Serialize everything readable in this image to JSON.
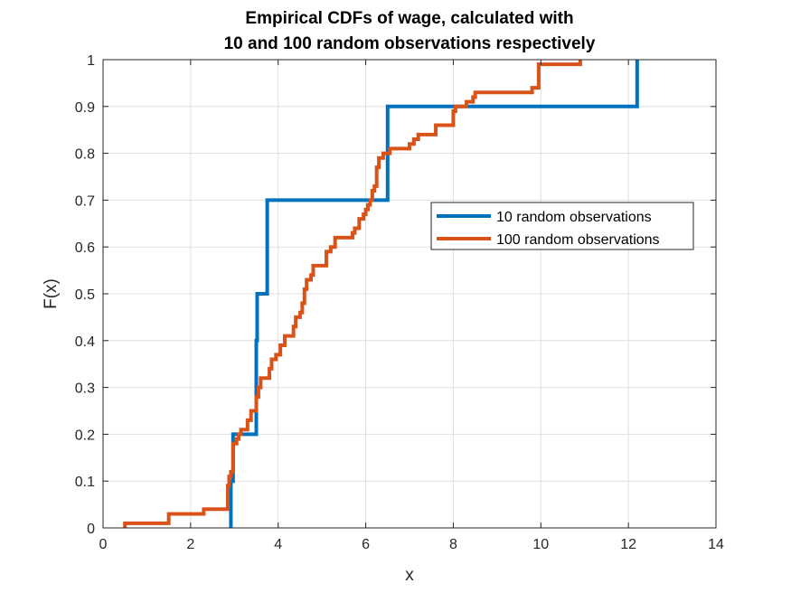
{
  "chart_data": {
    "type": "line",
    "title": "Empirical CDFs of wage, calculated with",
    "subtitle": "10 and 100 random observations respectively",
    "xlabel": "x",
    "ylabel": "F(x)",
    "xlim": [
      0,
      14
    ],
    "ylim": [
      0,
      1
    ],
    "xticks": [
      0,
      2,
      4,
      6,
      8,
      10,
      12,
      14
    ],
    "yticks": [
      0,
      0.1,
      0.2,
      0.3,
      0.4,
      0.5,
      0.6,
      0.7,
      0.8,
      0.9,
      1
    ],
    "xtick_labels": [
      "0",
      "2",
      "4",
      "6",
      "8",
      "10",
      "12",
      "14"
    ],
    "ytick_labels": [
      "0",
      "0.1",
      "0.2",
      "0.3",
      "0.4",
      "0.5",
      "0.6",
      "0.7",
      "0.8",
      "0.9",
      "1"
    ],
    "grid": true,
    "legend_position": "upper-right-inside",
    "series": [
      {
        "name": "10 random observations",
        "color": "#0072BD",
        "step_points": [
          [
            2.92,
            0
          ],
          [
            2.92,
            0.1
          ],
          [
            2.97,
            0.1
          ],
          [
            2.97,
            0.2
          ],
          [
            3.5,
            0.2
          ],
          [
            3.5,
            0.4
          ],
          [
            3.52,
            0.4
          ],
          [
            3.52,
            0.5
          ],
          [
            3.75,
            0.5
          ],
          [
            3.75,
            0.7
          ],
          [
            6.5,
            0.7
          ],
          [
            6.5,
            0.9
          ],
          [
            12.2,
            0.9
          ],
          [
            12.2,
            1
          ]
        ]
      },
      {
        "name": "100 random observations",
        "color": "#D95319",
        "step_points": [
          [
            0.5,
            0
          ],
          [
            0.5,
            0.01
          ],
          [
            1.5,
            0.01
          ],
          [
            1.5,
            0.03
          ],
          [
            2.3,
            0.03
          ],
          [
            2.3,
            0.04
          ],
          [
            2.85,
            0.04
          ],
          [
            2.85,
            0.09
          ],
          [
            2.88,
            0.09
          ],
          [
            2.88,
            0.11
          ],
          [
            2.92,
            0.11
          ],
          [
            2.92,
            0.12
          ],
          [
            2.97,
            0.12
          ],
          [
            2.97,
            0.18
          ],
          [
            3.05,
            0.18
          ],
          [
            3.05,
            0.19
          ],
          [
            3.1,
            0.19
          ],
          [
            3.1,
            0.2
          ],
          [
            3.15,
            0.2
          ],
          [
            3.15,
            0.21
          ],
          [
            3.3,
            0.21
          ],
          [
            3.3,
            0.23
          ],
          [
            3.38,
            0.23
          ],
          [
            3.38,
            0.25
          ],
          [
            3.5,
            0.25
          ],
          [
            3.5,
            0.28
          ],
          [
            3.55,
            0.28
          ],
          [
            3.55,
            0.3
          ],
          [
            3.6,
            0.3
          ],
          [
            3.6,
            0.32
          ],
          [
            3.8,
            0.32
          ],
          [
            3.8,
            0.34
          ],
          [
            3.85,
            0.34
          ],
          [
            3.85,
            0.36
          ],
          [
            3.95,
            0.36
          ],
          [
            3.95,
            0.37
          ],
          [
            4.05,
            0.37
          ],
          [
            4.05,
            0.39
          ],
          [
            4.15,
            0.39
          ],
          [
            4.15,
            0.41
          ],
          [
            4.35,
            0.41
          ],
          [
            4.35,
            0.43
          ],
          [
            4.4,
            0.43
          ],
          [
            4.4,
            0.45
          ],
          [
            4.5,
            0.45
          ],
          [
            4.5,
            0.46
          ],
          [
            4.55,
            0.46
          ],
          [
            4.55,
            0.48
          ],
          [
            4.6,
            0.48
          ],
          [
            4.6,
            0.51
          ],
          [
            4.65,
            0.51
          ],
          [
            4.65,
            0.53
          ],
          [
            4.75,
            0.53
          ],
          [
            4.75,
            0.54
          ],
          [
            4.8,
            0.54
          ],
          [
            4.8,
            0.56
          ],
          [
            5.0,
            0.56
          ],
          [
            5.0,
            0.56
          ],
          [
            5.1,
            0.56
          ],
          [
            5.1,
            0.59
          ],
          [
            5.2,
            0.59
          ],
          [
            5.2,
            0.6
          ],
          [
            5.3,
            0.6
          ],
          [
            5.3,
            0.62
          ],
          [
            5.45,
            0.62
          ],
          [
            5.45,
            0.62
          ],
          [
            5.7,
            0.62
          ],
          [
            5.7,
            0.63
          ],
          [
            5.75,
            0.63
          ],
          [
            5.75,
            0.64
          ],
          [
            5.85,
            0.64
          ],
          [
            5.85,
            0.66
          ],
          [
            5.95,
            0.66
          ],
          [
            5.95,
            0.67
          ],
          [
            6.0,
            0.67
          ],
          [
            6.0,
            0.68
          ],
          [
            6.05,
            0.68
          ],
          [
            6.05,
            0.69
          ],
          [
            6.1,
            0.69
          ],
          [
            6.1,
            0.7
          ],
          [
            6.15,
            0.7
          ],
          [
            6.15,
            0.72
          ],
          [
            6.2,
            0.72
          ],
          [
            6.2,
            0.73
          ],
          [
            6.25,
            0.73
          ],
          [
            6.25,
            0.77
          ],
          [
            6.3,
            0.77
          ],
          [
            6.3,
            0.79
          ],
          [
            6.4,
            0.79
          ],
          [
            6.4,
            0.8
          ],
          [
            6.55,
            0.8
          ],
          [
            6.55,
            0.81
          ],
          [
            7.0,
            0.81
          ],
          [
            7.0,
            0.82
          ],
          [
            7.1,
            0.82
          ],
          [
            7.1,
            0.83
          ],
          [
            7.2,
            0.83
          ],
          [
            7.2,
            0.84
          ],
          [
            7.6,
            0.84
          ],
          [
            7.6,
            0.86
          ],
          [
            8.0,
            0.86
          ],
          [
            8.0,
            0.89
          ],
          [
            8.05,
            0.89
          ],
          [
            8.05,
            0.9
          ],
          [
            8.3,
            0.9
          ],
          [
            8.3,
            0.91
          ],
          [
            8.45,
            0.91
          ],
          [
            8.45,
            0.92
          ],
          [
            8.5,
            0.92
          ],
          [
            8.5,
            0.93
          ],
          [
            9.8,
            0.93
          ],
          [
            9.8,
            0.94
          ],
          [
            9.95,
            0.94
          ],
          [
            9.95,
            0.99
          ],
          [
            10.9,
            0.99
          ],
          [
            10.9,
            1
          ]
        ]
      }
    ]
  }
}
